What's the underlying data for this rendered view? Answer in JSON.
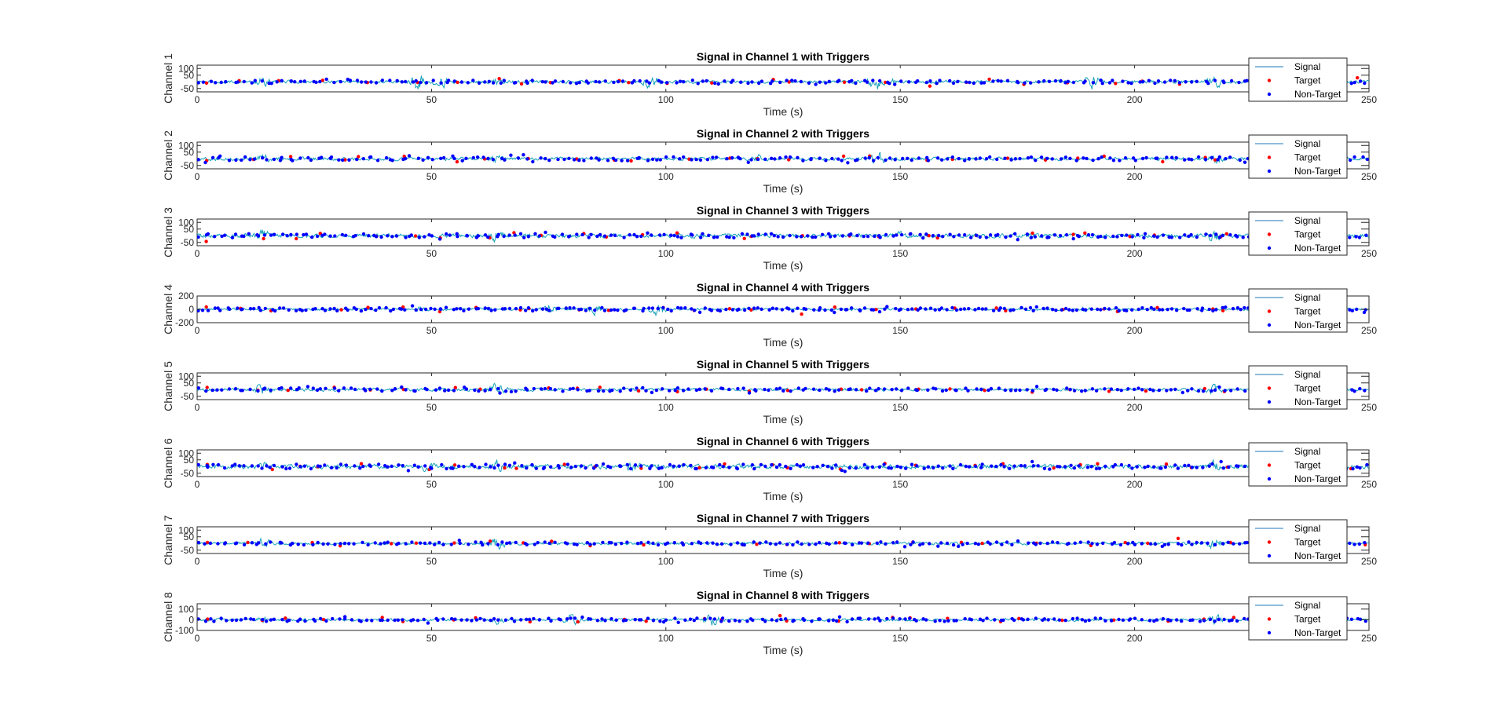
{
  "figure": {
    "colors": {
      "background": "#ffffff",
      "axes": "#262626",
      "signal": "#1f77b4",
      "signal_alt": "#17a2b8",
      "target": "#ff0000",
      "non_target": "#0000ff",
      "legend_border": "#262626"
    }
  },
  "chart_data": [
    {
      "type": "line",
      "title": "Signal in Channel 1 with Triggers",
      "xlabel": "Time (s)",
      "ylabel": "Channel 1",
      "xlim": [
        0,
        250
      ],
      "xticks": [
        0,
        50,
        100,
        150,
        200,
        250
      ],
      "ylim": [
        -75,
        125
      ],
      "yticks": [
        100,
        50,
        -50
      ],
      "ytick_labels": [
        "100",
        "50",
        "-50"
      ],
      "grid": false,
      "legend": {
        "placement": "top-right",
        "entries": [
          "Signal",
          "Target",
          "Non-Target"
        ]
      },
      "series": [
        {
          "name": "Signal",
          "kind": "line",
          "amplitude": 9,
          "bursts": [
            {
              "x": 14,
              "amp": 35
            },
            {
              "x": 47,
              "amp": 55
            },
            {
              "x": 52,
              "amp": 40
            },
            {
              "x": 64,
              "amp": 30
            },
            {
              "x": 97,
              "amp": 50
            },
            {
              "x": 145,
              "amp": 55
            },
            {
              "x": 147,
              "amp": 45
            },
            {
              "x": 191,
              "amp": 50
            },
            {
              "x": 217,
              "amp": 40
            }
          ]
        },
        {
          "name": "Target",
          "kind": "scatter",
          "count": 30,
          "spread": 20,
          "seed": 11
        },
        {
          "name": "Non-Target",
          "kind": "scatter",
          "count": 210,
          "spread": 12,
          "seed": 12
        }
      ]
    },
    {
      "type": "line",
      "title": "Signal in Channel 2 with Triggers",
      "xlabel": "Time (s)",
      "ylabel": "Channel 2",
      "xlim": [
        0,
        250
      ],
      "xticks": [
        0,
        50,
        100,
        150,
        200,
        250
      ],
      "ylim": [
        -75,
        125
      ],
      "yticks": [
        100,
        50,
        -50
      ],
      "ytick_labels": [
        "100",
        "50",
        "-50"
      ],
      "grid": false,
      "legend": {
        "placement": "top-right",
        "entries": [
          "Signal",
          "Target",
          "Non-Target"
        ]
      },
      "series": [
        {
          "name": "Signal",
          "kind": "line",
          "amplitude": 10,
          "bursts": [
            {
              "x": 14,
              "amp": 30
            },
            {
              "x": 64,
              "amp": 40
            },
            {
              "x": 120,
              "amp": 30
            },
            {
              "x": 145,
              "amp": 55
            },
            {
              "x": 217,
              "amp": 40
            }
          ]
        },
        {
          "name": "Target",
          "kind": "scatter",
          "count": 30,
          "spread": 22,
          "seed": 21
        },
        {
          "name": "Non-Target",
          "kind": "scatter",
          "count": 210,
          "spread": 14,
          "seed": 22
        }
      ]
    },
    {
      "type": "line",
      "title": "Signal in Channel 3 with Triggers",
      "xlabel": "Time (s)",
      "ylabel": "Channel 3",
      "xlim": [
        0,
        250
      ],
      "xticks": [
        0,
        50,
        100,
        150,
        200,
        250
      ],
      "ylim": [
        -75,
        125
      ],
      "yticks": [
        100,
        50,
        -50
      ],
      "ytick_labels": [
        "100",
        "50",
        "-50"
      ],
      "grid": false,
      "legend": {
        "placement": "top-right",
        "entries": [
          "Signal",
          "Target",
          "Non-Target"
        ]
      },
      "series": [
        {
          "name": "Signal",
          "kind": "line",
          "amplitude": 12,
          "bursts": [
            {
              "x": 14,
              "amp": 40
            },
            {
              "x": 64,
              "amp": 45
            },
            {
              "x": 150,
              "amp": 30
            },
            {
              "x": 217,
              "amp": 40
            }
          ]
        },
        {
          "name": "Target",
          "kind": "scatter",
          "count": 32,
          "spread": 24,
          "seed": 31
        },
        {
          "name": "Non-Target",
          "kind": "scatter",
          "count": 230,
          "spread": 15,
          "seed": 32
        }
      ]
    },
    {
      "type": "line",
      "title": "Signal in Channel 4 with Triggers",
      "xlabel": "Time (s)",
      "ylabel": "Channel 4",
      "xlim": [
        0,
        250
      ],
      "xticks": [
        0,
        50,
        100,
        150,
        200,
        250
      ],
      "ylim": [
        -200,
        200
      ],
      "yticks": [
        200,
        0,
        -200
      ],
      "ytick_labels": [
        "200",
        "0",
        "-200"
      ],
      "grid": false,
      "legend": {
        "placement": "top-right",
        "entries": [
          "Signal",
          "Target",
          "Non-Target"
        ]
      },
      "series": [
        {
          "name": "Signal",
          "kind": "line",
          "amplitude": 14,
          "bursts": [
            {
              "x": 48,
              "amp": 40
            },
            {
              "x": 75,
              "amp": 70
            },
            {
              "x": 85,
              "amp": 70
            },
            {
              "x": 98,
              "amp": 90
            },
            {
              "x": 189,
              "amp": 40
            }
          ]
        },
        {
          "name": "Target",
          "kind": "scatter",
          "count": 32,
          "spread": 35,
          "seed": 41
        },
        {
          "name": "Non-Target",
          "kind": "scatter",
          "count": 260,
          "spread": 25,
          "seed": 42
        }
      ]
    },
    {
      "type": "line",
      "title": "Signal in Channel 5 with Triggers",
      "xlabel": "Time (s)",
      "ylabel": "Channel 5",
      "xlim": [
        0,
        250
      ],
      "xticks": [
        0,
        50,
        100,
        150,
        200,
        250
      ],
      "ylim": [
        -75,
        125
      ],
      "yticks": [
        100,
        50,
        -50
      ],
      "ytick_labels": [
        "100",
        "50",
        "-50"
      ],
      "grid": false,
      "legend": {
        "placement": "top-right",
        "entries": [
          "Signal",
          "Target",
          "Non-Target"
        ]
      },
      "series": [
        {
          "name": "Signal",
          "kind": "line",
          "amplitude": 9,
          "bursts": [
            {
              "x": 14,
              "amp": 40
            },
            {
              "x": 64,
              "amp": 45
            },
            {
              "x": 217,
              "amp": 40
            }
          ]
        },
        {
          "name": "Target",
          "kind": "scatter",
          "count": 30,
          "spread": 20,
          "seed": 51
        },
        {
          "name": "Non-Target",
          "kind": "scatter",
          "count": 210,
          "spread": 12,
          "seed": 52
        }
      ]
    },
    {
      "type": "line",
      "title": "Signal in Channel 6 with Triggers",
      "xlabel": "Time (s)",
      "ylabel": "Channel 6",
      "xlim": [
        0,
        250
      ],
      "xticks": [
        0,
        50,
        100,
        150,
        200,
        250
      ],
      "ylim": [
        -75,
        125
      ],
      "yticks": [
        100,
        50,
        -50
      ],
      "ytick_labels": [
        "100",
        "50",
        "-50"
      ],
      "grid": false,
      "legend": {
        "placement": "top-right",
        "entries": [
          "Signal",
          "Target",
          "Non-Target"
        ]
      },
      "series": [
        {
          "name": "Signal",
          "kind": "line",
          "amplitude": 13,
          "bursts": [
            {
              "x": 14,
              "amp": 35
            },
            {
              "x": 49,
              "amp": 35
            },
            {
              "x": 64,
              "amp": 45
            },
            {
              "x": 93,
              "amp": 40
            },
            {
              "x": 217,
              "amp": 40
            }
          ]
        },
        {
          "name": "Target",
          "kind": "scatter",
          "count": 30,
          "spread": 24,
          "seed": 61
        },
        {
          "name": "Non-Target",
          "kind": "scatter",
          "count": 230,
          "spread": 17,
          "seed": 62
        }
      ]
    },
    {
      "type": "line",
      "title": "Signal in Channel 7 with Triggers",
      "xlabel": "Time (s)",
      "ylabel": "Channel 7",
      "xlim": [
        0,
        250
      ],
      "xticks": [
        0,
        50,
        100,
        150,
        200,
        250
      ],
      "ylim": [
        -75,
        125
      ],
      "yticks": [
        100,
        50,
        -50
      ],
      "ytick_labels": [
        "100",
        "50",
        "-50"
      ],
      "grid": false,
      "legend": {
        "placement": "top-right",
        "entries": [
          "Signal",
          "Target",
          "Non-Target"
        ]
      },
      "series": [
        {
          "name": "Signal",
          "kind": "line",
          "amplitude": 8,
          "bursts": [
            {
              "x": 14,
              "amp": 35
            },
            {
              "x": 64,
              "amp": 45
            },
            {
              "x": 217,
              "amp": 40
            }
          ]
        },
        {
          "name": "Target",
          "kind": "scatter",
          "count": 30,
          "spread": 18,
          "seed": 71
        },
        {
          "name": "Non-Target",
          "kind": "scatter",
          "count": 210,
          "spread": 11,
          "seed": 72
        }
      ]
    },
    {
      "type": "line",
      "title": "Signal in Channel 8 with Triggers",
      "xlabel": "Time (s)",
      "ylabel": "Channel 8",
      "xlim": [
        0,
        250
      ],
      "xticks": [
        0,
        50,
        100,
        150,
        200,
        250
      ],
      "ylim": [
        -100,
        150
      ],
      "yticks": [
        100,
        0,
        -100
      ],
      "ytick_labels": [
        "100",
        "0",
        "-100"
      ],
      "grid": false,
      "legend": {
        "placement": "top-right",
        "entries": [
          "Signal",
          "Target",
          "Non-Target"
        ]
      },
      "series": [
        {
          "name": "Signal",
          "kind": "line",
          "amplitude": 10,
          "bursts": [
            {
              "x": 14,
              "amp": 35
            },
            {
              "x": 64,
              "amp": 35
            },
            {
              "x": 80,
              "amp": 45
            },
            {
              "x": 110,
              "amp": 55
            },
            {
              "x": 217,
              "amp": 45
            }
          ]
        },
        {
          "name": "Target",
          "kind": "scatter",
          "count": 30,
          "spread": 22,
          "seed": 81
        },
        {
          "name": "Non-Target",
          "kind": "scatter",
          "count": 230,
          "spread": 15,
          "seed": 82
        }
      ]
    }
  ]
}
